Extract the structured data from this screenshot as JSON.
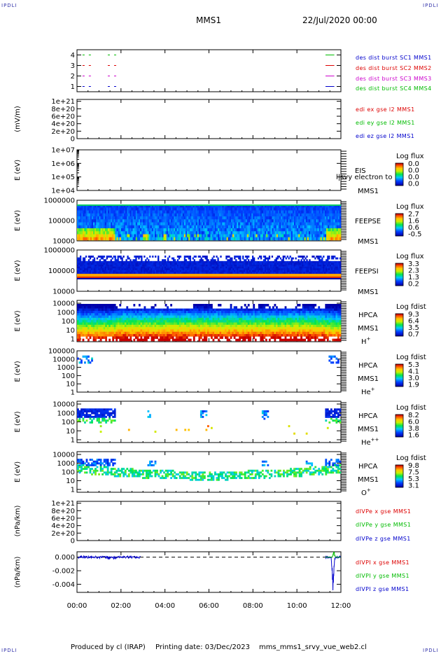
{
  "header": {
    "corner_label": "IPDLI",
    "spacecraft": "MMS1",
    "date": "22/Jul/2020 00:00"
  },
  "footer": {
    "producer": "Produced by cl (IRAP)",
    "printing": "Printing date: 03/Dec/2023",
    "script": "mms_mms1_srvy_vue_web2.cl"
  },
  "colors": {
    "blue": "#0000cc",
    "red": "#dd0000",
    "green": "#00bb00",
    "magenta": "#cc00cc"
  },
  "time_axis": {
    "ticks": [
      "00:00",
      "02:00",
      "04:00",
      "06:00",
      "08:00",
      "10:00",
      "12:00"
    ],
    "range_hours": [
      0,
      12
    ]
  },
  "chart_data": [
    {
      "type": "line",
      "id": "burst",
      "ylabel": "",
      "yticks": [
        "1",
        "2",
        "3",
        "4"
      ],
      "ylim": [
        0.5,
        4.5
      ],
      "series": [
        {
          "name": "des dist burst SC1 MMS1",
          "color": "#0000cc",
          "level": 1,
          "segments": [
            [
              0.25,
              0.8
            ],
            [
              1.4,
              1.8
            ],
            [
              11.3,
              11.7
            ]
          ]
        },
        {
          "name": "des dist burst SC2 MMS2",
          "color": "#dd0000",
          "level": 3,
          "segments": [
            [
              0.25,
              0.8
            ],
            [
              1.4,
              1.8
            ],
            [
              11.3,
              11.7
            ]
          ]
        },
        {
          "name": "des dist burst SC3 MMS3",
          "color": "#cc00cc",
          "level": 2,
          "segments": [
            [
              0.25,
              0.8
            ],
            [
              1.4,
              1.8
            ],
            [
              11.3,
              11.7
            ]
          ]
        },
        {
          "name": "des dist burst SC4 MMS4",
          "color": "#00bb00",
          "level": 4,
          "segments": [
            [
              0.25,
              0.8
            ],
            [
              1.4,
              1.8
            ],
            [
              11.3,
              11.7
            ]
          ]
        }
      ]
    },
    {
      "type": "line",
      "id": "edi",
      "ylabel": "(mV/m)",
      "yticks": [
        "0",
        "2e+20",
        "4e+20",
        "6e+20",
        "8e+20",
        "1e+21"
      ],
      "ylim": [
        0,
        1.05e+21
      ],
      "series": [
        {
          "name": "edi ex gse l2 MMS1",
          "color": "#dd0000"
        },
        {
          "name": "edi ey gse l2 MMS1",
          "color": "#00bb00"
        },
        {
          "name": "edi ez gse l2 MMS1",
          "color": "#0000cc"
        }
      ]
    },
    {
      "type": "heatmap",
      "id": "eis",
      "ylabel": "E (eV)",
      "yticks": [
        "1e+04",
        "1e+05",
        "1e+06",
        "1e+07"
      ],
      "yscale": "log",
      "instrument": [
        "EIS",
        "MMS1"
      ],
      "overlay_text": "l|svy electron to",
      "colorbar_title": "Log flux",
      "colorbar_ticks": [
        "0.0",
        "0.0",
        "0.0",
        "0.0"
      ]
    },
    {
      "type": "heatmap",
      "id": "feeps_e",
      "ylabel": "E (eV)",
      "yticks": [
        "10000",
        "100000",
        "1000000"
      ],
      "yscale": "log",
      "instrument": [
        "FEEPSE",
        "MMS1"
      ],
      "colorbar_title": "Log flux",
      "colorbar_ticks": [
        "2.7",
        "1.6",
        "0.6",
        "-0.5"
      ]
    },
    {
      "type": "heatmap",
      "id": "feeps_i",
      "ylabel": "E (eV)",
      "yticks": [
        "10000",
        "100000",
        "1000000"
      ],
      "yscale": "log",
      "instrument": [
        "FEEPSI",
        "MMS1"
      ],
      "colorbar_title": "Log flux",
      "colorbar_ticks": [
        "3.3",
        "2.3",
        "1.3",
        "0.2"
      ]
    },
    {
      "type": "heatmap",
      "id": "hpca_h",
      "ylabel": "E (eV)",
      "yticks": [
        "1",
        "10",
        "100",
        "1000",
        "10000"
      ],
      "yscale": "log",
      "instrument": [
        "HPCA",
        "MMS1"
      ],
      "species": "H",
      "charge": "+",
      "colorbar_title": "Log fdist",
      "colorbar_ticks": [
        "9.3",
        "6.4",
        "3.5",
        "0.7"
      ]
    },
    {
      "type": "heatmap",
      "id": "hpca_he",
      "ylabel": "E (eV)",
      "yticks": [
        "1",
        "10",
        "100",
        "1000",
        "10000",
        "100000"
      ],
      "yscale": "log",
      "instrument": [
        "HPCA",
        "MMS1"
      ],
      "species": "He",
      "charge": "+",
      "colorbar_title": "Log fdist",
      "colorbar_ticks": [
        "5.3",
        "4.1",
        "3.0",
        "1.9"
      ]
    },
    {
      "type": "heatmap",
      "id": "hpca_hepp",
      "ylabel": "E (eV)",
      "yticks": [
        "1",
        "10",
        "100",
        "1000",
        "10000"
      ],
      "yscale": "log",
      "instrument": [
        "HPCA",
        "MMS1"
      ],
      "species": "He",
      "charge": "++",
      "colorbar_title": "Log fdist",
      "colorbar_ticks": [
        "8.2",
        "6.0",
        "3.8",
        "1.6"
      ]
    },
    {
      "type": "heatmap",
      "id": "hpca_o",
      "ylabel": "E (eV)",
      "yticks": [
        "1",
        "10",
        "100",
        "1000",
        "10000"
      ],
      "yscale": "log",
      "instrument": [
        "HPCA",
        "MMS1"
      ],
      "species": "O",
      "charge": "+",
      "colorbar_title": "Log fdist",
      "colorbar_ticks": [
        "9.8",
        "7.5",
        "5.3",
        "3.1"
      ]
    },
    {
      "type": "line",
      "id": "divpe",
      "ylabel": "(nPa/km)",
      "yticks": [
        "0",
        "2e+20",
        "4e+20",
        "6e+20",
        "8e+20",
        "1e+21"
      ],
      "ylim": [
        0,
        1.05e+21
      ],
      "series": [
        {
          "name": "dIVPe x gse MMS1",
          "color": "#dd0000"
        },
        {
          "name": "dIVPe y gse MMS1",
          "color": "#00bb00"
        },
        {
          "name": "dIVPe z gse MMS1",
          "color": "#0000cc"
        }
      ]
    },
    {
      "type": "line",
      "id": "divpi",
      "ylabel": "(nPa/km)",
      "yticks": [
        "0.000",
        "-0.002",
        "-0.004"
      ],
      "ytick_values": [
        0,
        -0.002,
        -0.004
      ],
      "ylim": [
        -0.0052,
        0.0008
      ],
      "series": [
        {
          "name": "dIVPI x gse MMS1",
          "color": "#dd0000"
        },
        {
          "name": "dIVPI y gse MMS1",
          "color": "#00bb00"
        },
        {
          "name": "dIVPI z gse MMS1",
          "color": "#0000cc"
        }
      ]
    }
  ]
}
